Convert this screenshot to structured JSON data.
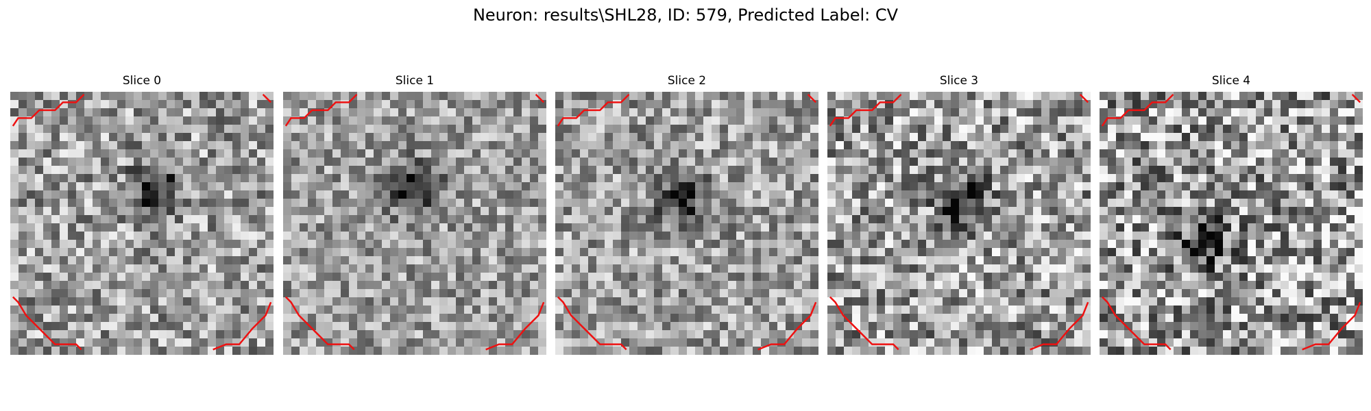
{
  "title": "Neuron: results\\SHL28, ID: 579, Predicted Label: CV",
  "slices": [
    {
      "label": "Slice 0",
      "seed": 11,
      "dark_spot": [
        0.55,
        0.37
      ],
      "contrast": 0.65
    },
    {
      "label": "Slice 1",
      "seed": 23,
      "dark_spot": [
        0.5,
        0.37
      ],
      "contrast": 0.55
    },
    {
      "label": "Slice 2",
      "seed": 37,
      "dark_spot": [
        0.48,
        0.4
      ],
      "contrast": 0.6
    },
    {
      "label": "Slice 3",
      "seed": 51,
      "dark_spot": [
        0.52,
        0.42
      ],
      "contrast": 0.75
    },
    {
      "label": "Slice 4",
      "seed": 67,
      "dark_spot": [
        0.4,
        0.58
      ],
      "contrast": 0.85
    }
  ],
  "colors": {
    "contour": "#ee1111",
    "background": "#ffffff"
  }
}
